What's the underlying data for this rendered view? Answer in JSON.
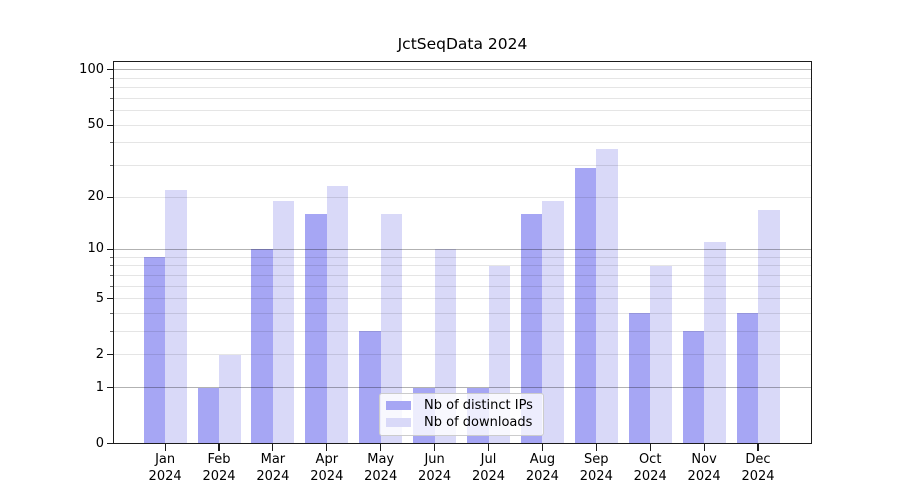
{
  "chart_data": {
    "type": "bar",
    "title": "JctSeqData 2024",
    "categories": [
      "Jan",
      "Feb",
      "Mar",
      "Apr",
      "May",
      "Jun",
      "Jul",
      "Aug",
      "Sep",
      "Oct",
      "Nov",
      "Dec"
    ],
    "year_line": "2024",
    "series": [
      {
        "name": "Nb of distinct IPs",
        "color": "#a6a6f4",
        "values": [
          9,
          1,
          10,
          16,
          3,
          1,
          1,
          16,
          29,
          4,
          3,
          4
        ]
      },
      {
        "name": "Nb of downloads",
        "color": "#d9d9f8",
        "values": [
          22,
          2,
          19,
          23,
          16,
          10,
          8,
          19,
          37,
          8,
          11,
          17
        ]
      }
    ],
    "y_axis": {
      "scale": "log10(1+x)",
      "ylim": [
        0,
        112
      ],
      "tick_values": [
        0,
        1,
        2,
        5,
        10,
        20,
        50,
        100
      ],
      "tick_labels": [
        "0",
        "1",
        "2",
        "5",
        "10",
        "20",
        "50",
        "100"
      ],
      "major_grid_values": [
        1,
        10,
        100
      ],
      "minor_grid_values": [
        2,
        3,
        4,
        5,
        6,
        7,
        8,
        9,
        20,
        30,
        40,
        50,
        60,
        70,
        80,
        90
      ]
    },
    "x_axis": {
      "tick_count": 12
    },
    "legend": {
      "position": "lower center"
    },
    "grid": "on (drawn above bars)",
    "colors": {
      "major_grid": "#b3b3b3",
      "minor_grid": "#e8e8e8",
      "spine": "#1c1c1c",
      "text": "#000000",
      "legend_border": "#cccccc",
      "legend_background": "#ffffff"
    }
  }
}
